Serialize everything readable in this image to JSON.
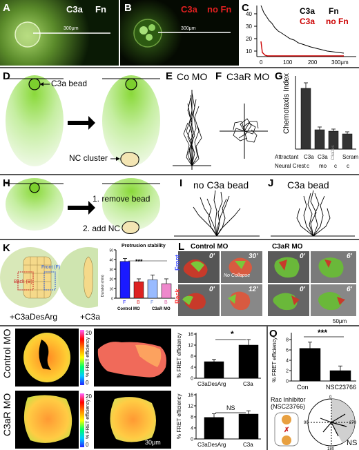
{
  "panels": {
    "A": {
      "letter": "A",
      "label1": "C3a",
      "label2": "Fn",
      "scalebar": "300μm"
    },
    "B": {
      "letter": "B",
      "label1": "C3a",
      "label2": "no Fn",
      "scalebar": "300μm"
    },
    "C": {
      "letter": "C",
      "legend1a": "C3a",
      "legend1b": "Fn",
      "legend2a": "C3a",
      "legend2b": "no Fn",
      "yticks": [
        "40",
        "30",
        "20",
        "10"
      ],
      "xticks": [
        "0",
        "100",
        "200",
        "300μm"
      ]
    },
    "D": {
      "letter": "D",
      "bead_label": "C3a bead",
      "cluster_label": "NC cluster"
    },
    "E": {
      "letter": "E",
      "title": "Co MO"
    },
    "F": {
      "letter": "F",
      "title": "C3aR MO"
    },
    "G": {
      "letter": "G",
      "ylabel": "Chemotaxis Index",
      "row1_label": "Attractant",
      "row2_label": "Neural Crest",
      "attractants": [
        "C3a",
        "C3a",
        "C3aDes",
        "Scram"
      ],
      "neural_crest": [
        "c",
        "mo",
        "c",
        "c"
      ]
    },
    "H": {
      "letter": "H",
      "step1": "1. remove bead",
      "step2": "2. add NC"
    },
    "I": {
      "letter": "I",
      "title": "no C3a bead"
    },
    "J": {
      "letter": "J",
      "title": "C3a bead"
    },
    "K": {
      "letter": "K",
      "back_label": "Back (B)",
      "front_label": "Front (F)",
      "treat1": "+C3aDesArg",
      "treat2": "+C3a",
      "chart_title": "Protrusion stability",
      "ylabel": "Duration (min)",
      "sig": "***",
      "xcats": [
        "F",
        "B",
        "F",
        "B"
      ],
      "group1": "Control MO",
      "group2": "C3aR MO",
      "yticks": [
        "0",
        "10",
        "20",
        "30",
        "40",
        "50"
      ]
    },
    "L": {
      "letter": "L",
      "head1": "Control MO",
      "head2": "C3aR MO",
      "front": "Front",
      "back": "Back",
      "t1": "0'",
      "t2": "30'",
      "t3": "0'",
      "t4": "12'",
      "t5": "0'",
      "t6": "6'",
      "t7": "0'",
      "t8": "6'",
      "no_collapse": "No Collapse",
      "scalebar": "50μm"
    },
    "M": {
      "letter": "M",
      "rowlabel": "Control MO",
      "cb_top": "20",
      "cb_bottom": "0",
      "cb_label": "% FRET efficiency",
      "ylabel": "% FRET efficiency",
      "cats": [
        "C3aDesArg",
        "C3a"
      ],
      "sig": "*",
      "yticks": [
        "0",
        "4",
        "8",
        "12",
        "16"
      ]
    },
    "N": {
      "letter": "N",
      "rowlabel": "C3aR MO",
      "cb_top": "20",
      "cb_bottom": "0",
      "cb_label": "% FRET efficiency",
      "ylabel": "% FRET efficiency",
      "cats": [
        "C3aDesArg",
        "C3a"
      ],
      "sig": "NS",
      "yticks": [
        "0",
        "4",
        "8",
        "12",
        "16"
      ],
      "scalebar": "30μm"
    },
    "O": {
      "letter": "O",
      "ylabel": "% FRET efficiency",
      "cats": [
        "Con",
        "NSC23766"
      ],
      "sig": "***",
      "yticks": [
        "0",
        "2",
        "4",
        "6",
        "8"
      ],
      "rac_label1": "Rac Inhibitor",
      "rac_label2": "(NSC23766)",
      "angles": [
        "0",
        "90",
        "180",
        "270"
      ],
      "ns": "NS"
    }
  },
  "chart_data": [
    {
      "type": "line",
      "panel": "C",
      "series": [
        {
          "name": "C3a Fn",
          "color": "#000000"
        },
        {
          "name": "C3a no Fn",
          "color": "#cc0000"
        }
      ]
    },
    {
      "type": "bar",
      "panel": "G",
      "ylabel": "Chemotaxis Index",
      "categories": [
        "C3a / c",
        "C3a / mo",
        "C3aDes / c",
        "Scram / c"
      ],
      "values": [
        0.88,
        0.28,
        0.26,
        0.22
      ],
      "errors": [
        0.08,
        0.04,
        0.03,
        0.03
      ],
      "ylim": [
        0,
        1
      ]
    },
    {
      "type": "bar",
      "panel": "K",
      "title": "Protrusion stability",
      "ylabel": "Duration (min)",
      "categories": [
        "F",
        "B",
        "F",
        "B"
      ],
      "values": [
        38,
        17,
        19,
        15
      ],
      "errors": [
        3,
        3,
        5,
        5
      ],
      "colors": [
        "#1a1aff",
        "#dd2222",
        "#99bbff",
        "#ee88cc"
      ],
      "ylim": [
        0,
        50
      ]
    },
    {
      "type": "bar",
      "panel": "M",
      "ylabel": "% FRET efficiency",
      "categories": [
        "C3aDesArg",
        "C3a"
      ],
      "values": [
        6,
        12
      ],
      "errors": [
        0.8,
        2
      ],
      "ylim": [
        0,
        16
      ]
    },
    {
      "type": "bar",
      "panel": "N",
      "ylabel": "% FRET efficiency",
      "categories": [
        "C3aDesArg",
        "C3a"
      ],
      "values": [
        7.8,
        9
      ],
      "errors": [
        1.3,
        1.2
      ],
      "ylim": [
        0,
        16
      ]
    },
    {
      "type": "bar",
      "panel": "O",
      "ylabel": "% FRET efficiency",
      "categories": [
        "Con",
        "NSC23766"
      ],
      "values": [
        6.3,
        2
      ],
      "errors": [
        1.2,
        0.9
      ],
      "ylim": [
        0,
        8
      ]
    }
  ]
}
